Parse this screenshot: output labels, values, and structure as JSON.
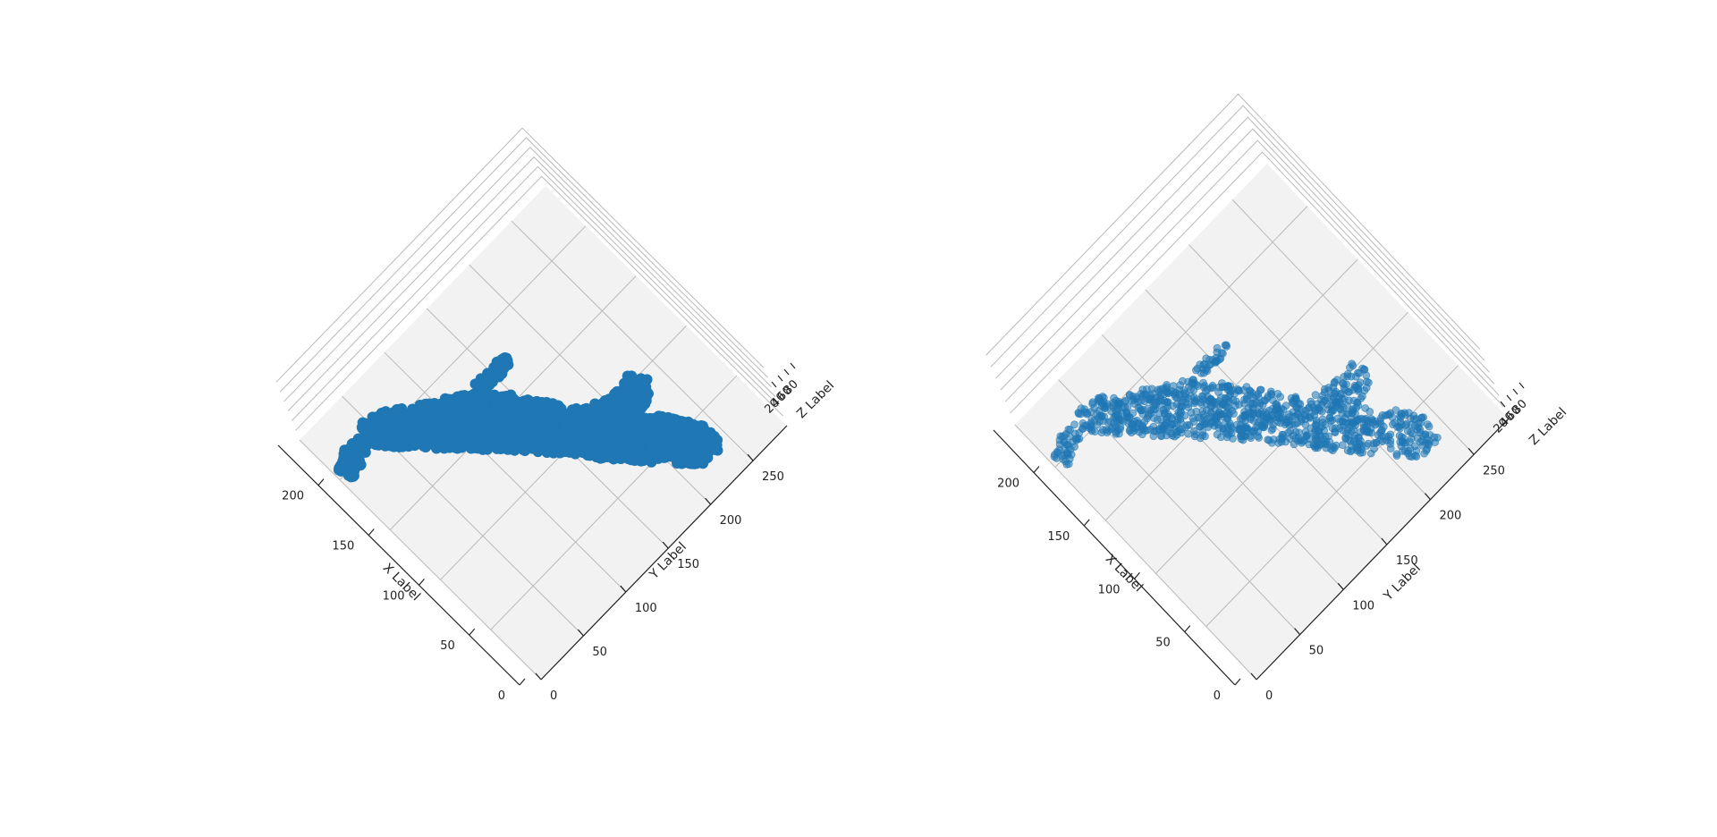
{
  "chart_data": [
    {
      "type": "scatter",
      "projection": "3d",
      "marker": "dense point cloud",
      "alpha": 1.0,
      "color": "#1f77b4",
      "xlabel": "X Label",
      "ylabel": "Y Label",
      "zlabel": "Z Label",
      "xlim": [
        0,
        240
      ],
      "ylim": [
        0,
        290
      ],
      "zlim": [
        20,
        90
      ],
      "xticks": [
        0,
        50,
        100,
        150,
        200
      ],
      "yticks": [
        0,
        50,
        100,
        150,
        200,
        250
      ],
      "zticks": [
        20,
        40,
        60,
        80
      ],
      "ztick_labels": [
        "20",
        "40",
        "60",
        "80"
      ],
      "grid": true
    },
    {
      "type": "scatter",
      "projection": "3d",
      "marker": "semi-transparent circles",
      "alpha": 0.55,
      "color": "#1f77b4",
      "xlabel": "X Label",
      "ylabel": "Y Label",
      "zlabel": "Z Label",
      "xlim": [
        0,
        240
      ],
      "ylim": [
        0,
        290
      ],
      "zlim": [
        20,
        90
      ],
      "xticks": [
        0,
        50,
        100,
        150,
        200
      ],
      "yticks": [
        0,
        50,
        100,
        150,
        200,
        250
      ],
      "zticks": [
        20,
        40,
        60,
        80
      ],
      "ztick_labels": [
        "20",
        "40",
        "60",
        "80"
      ],
      "grid": true
    }
  ]
}
